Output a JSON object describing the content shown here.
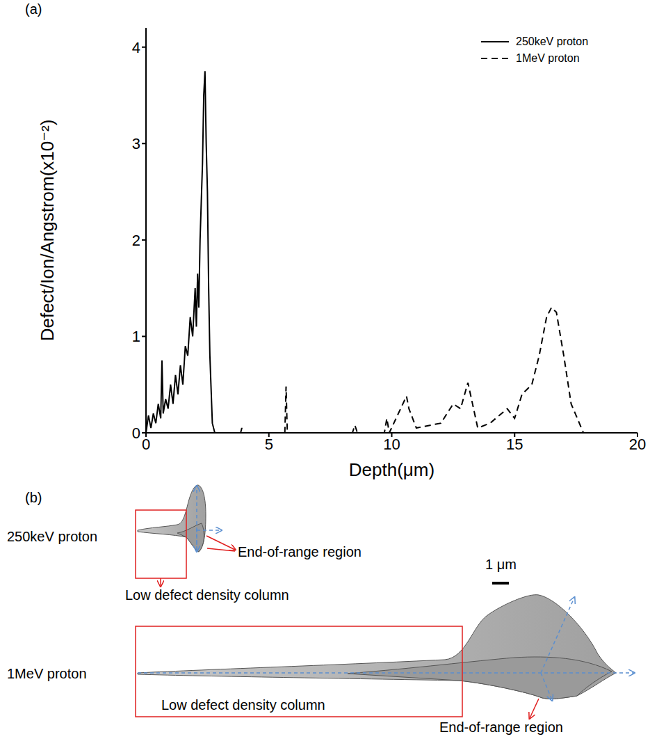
{
  "chart_data": {
    "type": "line",
    "panel": "(a)",
    "x_label": "Depth(μm)",
    "y_label": "Defect/Ion/Angstrom(x10⁻²)",
    "xlim": [
      0,
      20
    ],
    "xticks": [
      0,
      5,
      10,
      15,
      20
    ],
    "ylim": [
      0,
      4.2
    ],
    "yticks": [
      0,
      1,
      2,
      3,
      4
    ],
    "legend": "upper right",
    "grid": false,
    "series": [
      {
        "name": "250keV proton",
        "color": "#000000",
        "line_style": "solid",
        "x": [
          0,
          0.1,
          0.2,
          0.3,
          0.4,
          0.5,
          0.6,
          0.65,
          0.7,
          0.8,
          0.9,
          1.0,
          1.1,
          1.2,
          1.3,
          1.4,
          1.5,
          1.6,
          1.7,
          1.8,
          1.9,
          2.0,
          2.05,
          2.1,
          2.15,
          2.2,
          2.25,
          2.3,
          2.35,
          2.4,
          2.45,
          2.5,
          2.55,
          2.6,
          2.7,
          2.8
        ],
        "values": [
          0,
          0.18,
          0.05,
          0.2,
          0.1,
          0.3,
          0.15,
          0.75,
          0.2,
          0.35,
          0.25,
          0.5,
          0.3,
          0.6,
          0.4,
          0.7,
          0.5,
          0.9,
          0.8,
          1.2,
          1.0,
          1.5,
          1.1,
          1.65,
          1.3,
          2.0,
          2.4,
          2.8,
          3.5,
          3.75,
          3.0,
          2.5,
          1.5,
          0.8,
          0.1,
          0
        ]
      },
      {
        "name": "1MeV proton",
        "color": "#000000",
        "line_style": "dashed",
        "x": [
          0,
          3.85,
          3.9,
          3.95,
          5.65,
          5.7,
          5.75,
          8.4,
          8.5,
          8.6,
          9.7,
          9.8,
          9.9,
          10.6,
          10.7,
          11.0,
          12.0,
          12.5,
          12.8,
          13.1,
          13.5,
          14.0,
          14.7,
          15.0,
          15.3,
          15.7,
          16.0,
          16.3,
          16.5,
          16.7,
          17.0,
          17.3,
          17.8
        ],
        "values": [
          0,
          0,
          0.05,
          0,
          0,
          0.48,
          0,
          0,
          0.08,
          0,
          0,
          0.15,
          0,
          0.38,
          0.25,
          0.05,
          0.1,
          0.3,
          0.25,
          0.52,
          0.05,
          0.1,
          0.25,
          0.15,
          0.4,
          0.5,
          0.8,
          1.2,
          1.3,
          1.25,
          0.8,
          0.3,
          0
        ]
      }
    ]
  },
  "diagram": {
    "panel": "(b)",
    "scale_bar": "1 μm",
    "rows": [
      {
        "label": "250keV proton",
        "column": "Low defect density column",
        "end": "End-of-range region"
      },
      {
        "label": "1MeV proton",
        "column": "Low defect density column",
        "end": "End-of-range region"
      }
    ]
  }
}
